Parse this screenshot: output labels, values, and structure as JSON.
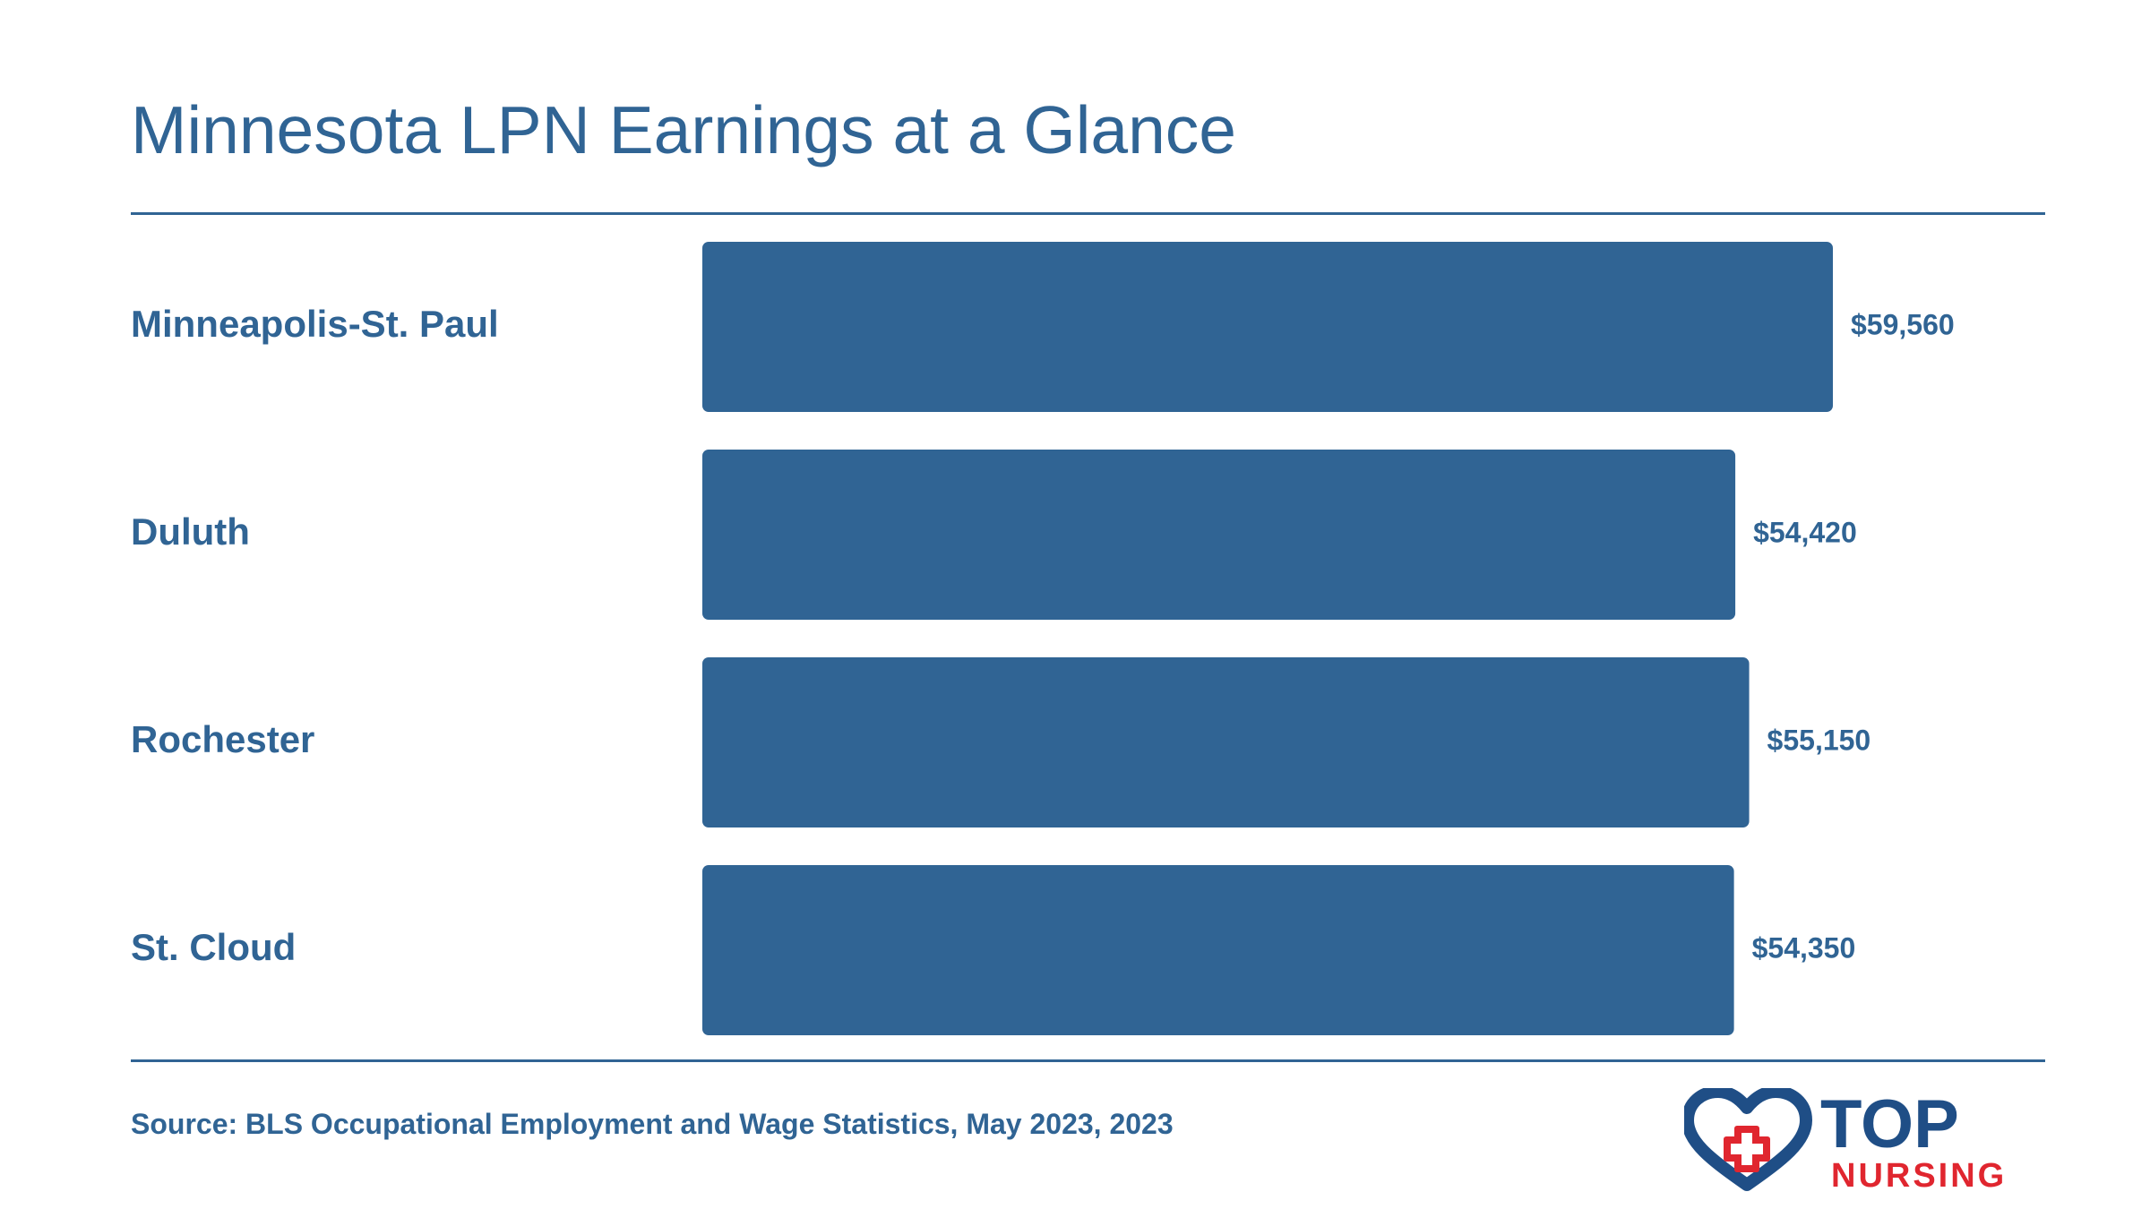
{
  "colors": {
    "bar": "#306494",
    "text": "#306494",
    "logo_navy": "#1f4e86",
    "logo_red": "#e0262f"
  },
  "chart_data": {
    "type": "bar",
    "orientation": "horizontal",
    "title": "Minnesota LPN Earnings at a Glance",
    "categories": [
      "Minneapolis-St. Paul",
      "Duluth",
      "Rochester",
      "St. Cloud"
    ],
    "values": [
      59560,
      54420,
      55150,
      54350
    ],
    "value_labels": [
      "$59,560",
      "$54,420",
      "$55,150",
      "$54,350"
    ],
    "xlim": [
      0,
      59560
    ],
    "grid": false,
    "legend": "none"
  },
  "source": "Source: BLS Occupational Employment and Wage Statistics, May 2023, 2023",
  "logo": {
    "icon": "heart-cross-icon",
    "word_top": "TOP",
    "word_bottom": "NURSING"
  }
}
